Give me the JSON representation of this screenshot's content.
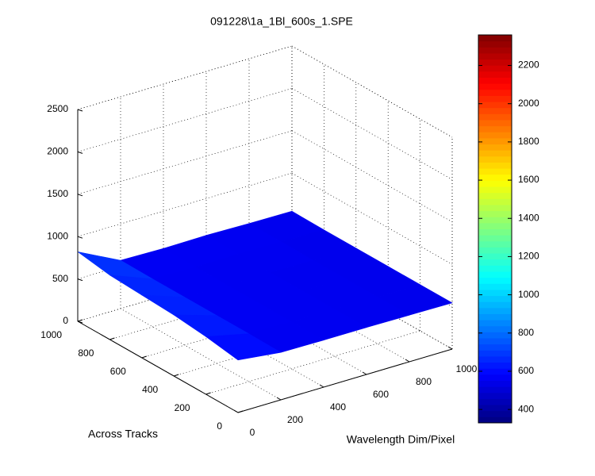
{
  "chart_data": {
    "type": "surface",
    "title": "091228\\1a_1Bl_600s_1.SPE",
    "xlabel": "Wavelength Dim/Pixel",
    "ylabel": "Across Tracks",
    "x": [
      0,
      200,
      400,
      600,
      800,
      1000
    ],
    "y": [
      0,
      200,
      400,
      600,
      800,
      1000
    ],
    "z": [
      [
        620,
        560,
        555,
        555,
        550,
        545
      ],
      [
        680,
        565,
        555,
        555,
        550,
        545
      ],
      [
        720,
        565,
        555,
        555,
        550,
        545
      ],
      [
        740,
        565,
        555,
        555,
        550,
        545
      ],
      [
        760,
        565,
        555,
        560,
        555,
        545
      ],
      [
        820,
        570,
        560,
        565,
        555,
        550
      ]
    ],
    "xlim": [
      0,
      1000
    ],
    "ylim": [
      0,
      1000
    ],
    "zlim": [
      0,
      2500
    ],
    "xticks": [
      0,
      200,
      400,
      600,
      800,
      1000
    ],
    "yticks": [
      0,
      200,
      400,
      600,
      800,
      1000
    ],
    "zticks": [
      0,
      500,
      1000,
      1500,
      2000,
      2500
    ],
    "clim": [
      330,
      2360
    ],
    "cticks": [
      400,
      600,
      800,
      1000,
      1200,
      1400,
      1600,
      1800,
      2000,
      2200
    ],
    "colormap": "jet",
    "grid": true
  }
}
